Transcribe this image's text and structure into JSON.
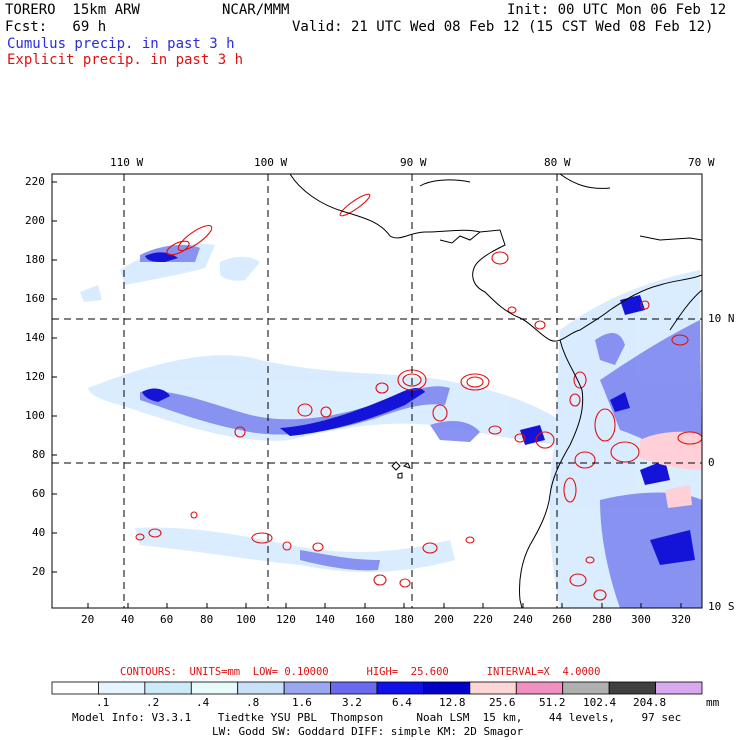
{
  "header": {
    "model": "TORERO  15km ARW",
    "center": "NCAR/MMM",
    "init": "Init: 00 UTC Mon 06 Feb 12",
    "fcst": "Fcst:   69 h",
    "valid": "Valid: 21 UTC Wed 08 Feb 12 (15 CST Wed 08 Feb 12)"
  },
  "legend_lines": {
    "cumulus": "Cumulus precip. in past 3 h",
    "explicit": "Explicit precip. in past 3 h"
  },
  "map": {
    "lon_labels": [
      "110 W",
      "100 W",
      "90 W",
      "80 W",
      "70 W"
    ],
    "lat_labels": [
      "10 N",
      "0",
      "10 S"
    ],
    "y_ticks": [
      "220",
      "200",
      "180",
      "160",
      "140",
      "120",
      "100",
      "80",
      "60",
      "40",
      "20"
    ],
    "x_ticks": [
      "20",
      "40",
      "60",
      "80",
      "100",
      "120",
      "140",
      "160",
      "180",
      "200",
      "220",
      "240",
      "260",
      "280",
      "300",
      "320"
    ]
  },
  "contours_line": "CONTOURS:  UNITS=mm  LOW= 0.10000      HIGH=  25.600      INTERVAL=X  4.0000",
  "colorbar": {
    "labels": [
      ".1",
      ".2",
      ".4",
      ".8",
      "1.6",
      "3.2",
      "6.4",
      "12.8",
      "25.6",
      "51.2",
      "102.4",
      "204.8"
    ],
    "unit": "mm",
    "colors": [
      "#ffffff",
      "#e6f4ff",
      "#cdeaf8",
      "#e8fbfb",
      "#c8e0f8",
      "#9aa8f0",
      "#6a6af0",
      "#1010e8",
      "#0000c8",
      "#ffd6d6",
      "#f090c0",
      "#b0b0b0",
      "#404040",
      "#d8a8f0"
    ]
  },
  "footer": {
    "line1": "Model Info: V3.3.1    Tiedtke YSU PBL  Thompson     Noah LSM  15 km,    44 levels,    97 sec",
    "line2": "LW: Godd SW: Goddard DIFF: simple KM: 2D Smagor"
  }
}
